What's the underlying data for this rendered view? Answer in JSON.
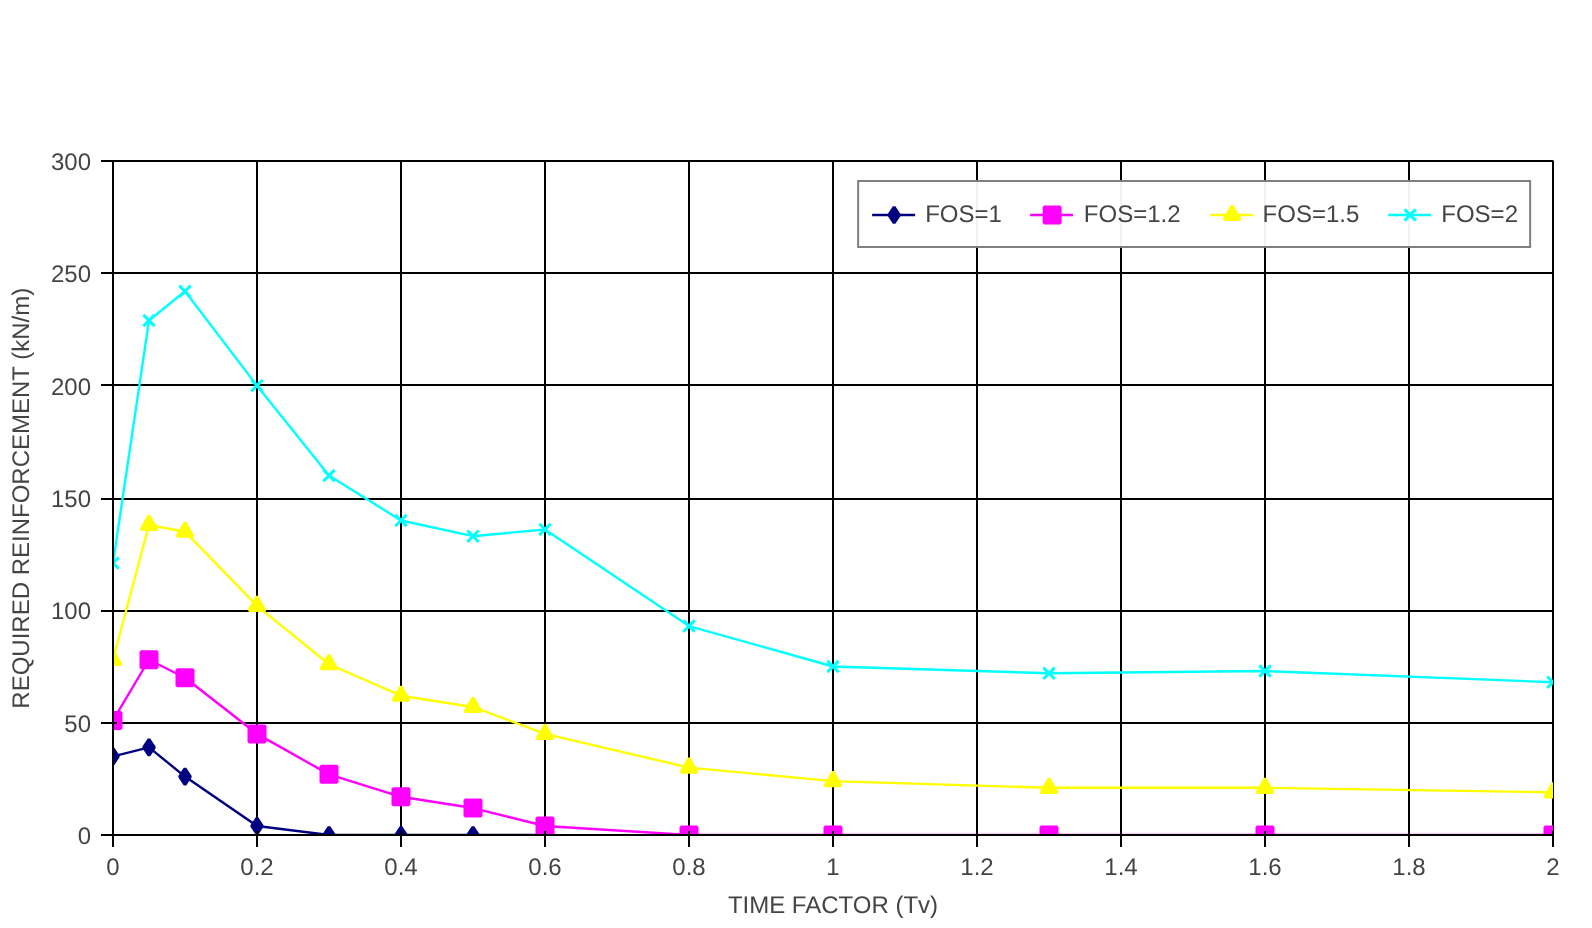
{
  "chart_data": {
    "type": "line",
    "xlabel": "TIME FACTOR (Tv)",
    "ylabel": "REQUIRED REINFORCEMENT (kN/m)",
    "x": [
      0,
      0.05,
      0.1,
      0.2,
      0.3,
      0.4,
      0.5,
      0.6,
      0.8,
      1,
      1.3,
      1.6,
      2
    ],
    "series": [
      {
        "name": "FOS=1",
        "color": "#000080",
        "marker": "diamond",
        "values": [
          35,
          39,
          26,
          4,
          0,
          0,
          0,
          0,
          null,
          null,
          null,
          null,
          null
        ]
      },
      {
        "name": "FOS=1.2",
        "color": "#ff00ff",
        "marker": "square",
        "values": [
          51,
          78,
          70,
          45,
          27,
          17,
          12,
          4,
          0,
          0,
          0,
          0,
          0
        ]
      },
      {
        "name": "FOS=1.5",
        "color": "#ffff00",
        "marker": "triangle",
        "values": [
          78,
          138,
          135,
          102,
          76,
          62,
          57,
          45,
          30,
          24,
          21,
          21,
          19
        ]
      },
      {
        "name": "FOS=2",
        "color": "#00ffff",
        "marker": "cross",
        "values": [
          121,
          229,
          242,
          200,
          160,
          140,
          133,
          136,
          93,
          75,
          72,
          73,
          68
        ]
      }
    ],
    "xlim": [
      0,
      2
    ],
    "ylim": [
      0,
      300
    ],
    "xticks": [
      0,
      0.2,
      0.4,
      0.6,
      0.8,
      1,
      1.2,
      1.4,
      1.6,
      1.8,
      2
    ],
    "yticks": [
      0,
      50,
      100,
      150,
      200,
      250,
      300
    ],
    "grid": true,
    "legend": "top right",
    "line_style": "solid"
  }
}
